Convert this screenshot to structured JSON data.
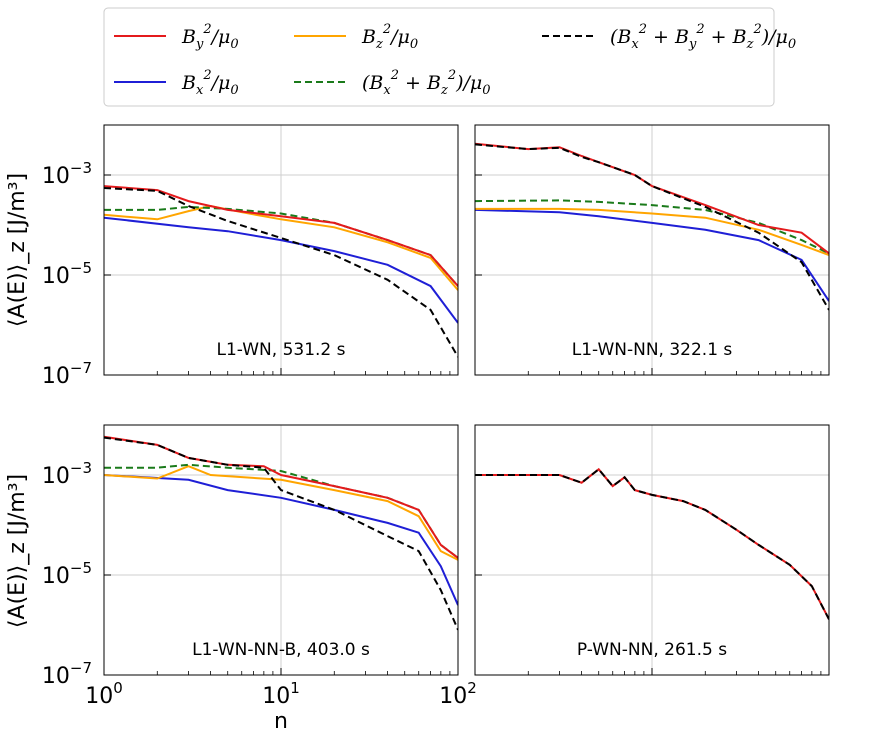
{
  "chart_data": {
    "type": "line",
    "xscale": "log",
    "yscale": "log",
    "xlabel": "n",
    "ylabel": "⟨A(E)⟩_z [J/m³]",
    "xlim": [
      1,
      100
    ],
    "ylim": [
      1e-07,
      0.01
    ],
    "x_ticks": [
      {
        "base": "10",
        "exp": "0"
      },
      {
        "base": "10",
        "exp": "1"
      },
      {
        "base": "10",
        "exp": "2"
      }
    ],
    "y_ticks": [
      {
        "base": "10",
        "exp": "−3",
        "value": 0.001
      },
      {
        "base": "10",
        "exp": "−5",
        "value": 1e-05
      },
      {
        "base": "10",
        "exp": "−7",
        "value": 1e-07
      }
    ],
    "legend": [
      {
        "key": "By",
        "label": "B_y²/μ₀",
        "color": "#e41a1c",
        "dash": "solid"
      },
      {
        "key": "Bx",
        "label": "B_x²/μ₀",
        "color": "#1f1fd6",
        "dash": "solid"
      },
      {
        "key": "Bz",
        "label": "B_z²/μ₀",
        "color": "#ffa500",
        "dash": "solid"
      },
      {
        "key": "Bxz",
        "label": "(B_x²+B_z²)/μ₀",
        "color": "#1a7a1a",
        "dash": "dashed"
      },
      {
        "key": "Btot",
        "label": "(B_x²+B_y²+B_z²)/μ₀",
        "color": "#000000",
        "dash": "dashed"
      }
    ],
    "panels": [
      {
        "label": "L1-WN, 531.2 s",
        "series": {
          "By": [
            [
              1,
              0.0006
            ],
            [
              2,
              0.0005
            ],
            [
              3,
              0.0003
            ],
            [
              5,
              0.0002
            ],
            [
              10,
              0.00015
            ],
            [
              20,
              0.00011
            ],
            [
              40,
              5e-05
            ],
            [
              70,
              2.5e-05
            ],
            [
              100,
              6e-06
            ]
          ],
          "Bx": [
            [
              1,
              0.00014
            ],
            [
              3,
              9e-05
            ],
            [
              5,
              7.5e-05
            ],
            [
              10,
              5e-05
            ],
            [
              20,
              3e-05
            ],
            [
              40,
              1.6e-05
            ],
            [
              70,
              6e-06
            ],
            [
              100,
              1.1e-06
            ]
          ],
          "Bz": [
            [
              1,
              0.00016
            ],
            [
              2,
              0.00013
            ],
            [
              3,
              0.00019
            ],
            [
              4,
              0.00024
            ],
            [
              6,
              0.00018
            ],
            [
              10,
              0.00013
            ],
            [
              20,
              9e-05
            ],
            [
              40,
              4.5e-05
            ],
            [
              70,
              2.2e-05
            ],
            [
              100,
              5e-06
            ]
          ],
          "Bxz": [
            [
              1,
              0.0002
            ],
            [
              2,
              0.0002
            ],
            [
              3,
              0.00023
            ],
            [
              5,
              0.00021
            ],
            [
              10,
              0.00017
            ],
            [
              20,
              0.00011
            ],
            [
              40,
              5e-05
            ],
            [
              70,
              2.5e-05
            ],
            [
              100,
              6e-06
            ]
          ],
          "Btot": [
            [
              1,
              0.00055
            ],
            [
              2,
              0.00048
            ],
            [
              3,
              0.00024
            ],
            [
              5,
              0.00012
            ],
            [
              10,
              5.5e-05
            ],
            [
              20,
              2.5e-05
            ],
            [
              40,
              8e-06
            ],
            [
              70,
              2e-06
            ],
            [
              100,
              2.3e-07
            ]
          ]
        }
      },
      {
        "label": "L1-WN-NN, 322.1 s",
        "series": {
          "By": [
            [
              1,
              0.0042
            ],
            [
              2,
              0.0033
            ],
            [
              3,
              0.0036
            ],
            [
              4,
              0.0024
            ],
            [
              5,
              0.0018
            ],
            [
              8,
              0.001
            ],
            [
              10,
              0.0006
            ],
            [
              20,
              0.00025
            ],
            [
              40,
              0.0001
            ],
            [
              70,
              7e-05
            ],
            [
              100,
              2.7e-05
            ]
          ],
          "Bx": [
            [
              1,
              0.0002
            ],
            [
              3,
              0.00018
            ],
            [
              5,
              0.00015
            ],
            [
              10,
              0.00011
            ],
            [
              20,
              8e-05
            ],
            [
              40,
              5e-05
            ],
            [
              70,
              2e-05
            ],
            [
              100,
              3e-06
            ]
          ],
          "Bz": [
            [
              1,
              0.00021
            ],
            [
              3,
              0.00021
            ],
            [
              5,
              0.0002
            ],
            [
              10,
              0.00017
            ],
            [
              20,
              0.00014
            ],
            [
              40,
              8e-05
            ],
            [
              70,
              4e-05
            ],
            [
              100,
              2.5e-05
            ]
          ],
          "Bxz": [
            [
              1,
              0.0003
            ],
            [
              3,
              0.00031
            ],
            [
              5,
              0.00029
            ],
            [
              10,
              0.00025
            ],
            [
              20,
              0.0002
            ],
            [
              40,
              0.00011
            ],
            [
              70,
              5e-05
            ],
            [
              100,
              2.7e-05
            ]
          ],
          "Btot": [
            [
              1,
              0.0041
            ],
            [
              2,
              0.0033
            ],
            [
              3,
              0.0035
            ],
            [
              4,
              0.0023
            ],
            [
              5,
              0.0018
            ],
            [
              8,
              0.001
            ],
            [
              10,
              0.0006
            ],
            [
              20,
              0.00023
            ],
            [
              40,
              7e-05
            ],
            [
              70,
              1.8e-05
            ],
            [
              100,
              2e-06
            ]
          ]
        }
      },
      {
        "label": "L1-WN-NN-B, 403.0 s",
        "series": {
          "By": [
            [
              1,
              0.0058
            ],
            [
              2,
              0.004
            ],
            [
              3,
              0.0022
            ],
            [
              5,
              0.0016
            ],
            [
              8,
              0.0015
            ],
            [
              10,
              0.001
            ],
            [
              20,
              0.0006
            ],
            [
              40,
              0.00035
            ],
            [
              60,
              0.0002
            ],
            [
              80,
              4e-05
            ],
            [
              100,
              2.2e-05
            ]
          ],
          "Bx": [
            [
              1,
              0.001
            ],
            [
              3,
              0.0008
            ],
            [
              5,
              0.0005
            ],
            [
              10,
              0.00035
            ],
            [
              20,
              0.0002
            ],
            [
              40,
              0.00011
            ],
            [
              60,
              7e-05
            ],
            [
              80,
              1.5e-05
            ],
            [
              100,
              2.5e-06
            ]
          ],
          "Bz": [
            [
              1,
              0.001
            ],
            [
              2,
              0.00085
            ],
            [
              3,
              0.0015
            ],
            [
              4,
              0.001
            ],
            [
              10,
              0.0008
            ],
            [
              20,
              0.0005
            ],
            [
              40,
              0.0003
            ],
            [
              60,
              0.00015
            ],
            [
              80,
              3e-05
            ],
            [
              100,
              2e-05
            ]
          ],
          "Bxz": [
            [
              1,
              0.0014
            ],
            [
              2,
              0.0014
            ],
            [
              3,
              0.0016
            ],
            [
              5,
              0.0014
            ],
            [
              10,
              0.0012
            ],
            [
              20,
              0.0006
            ],
            [
              40,
              0.00035
            ],
            [
              60,
              0.0002
            ],
            [
              80,
              4e-05
            ],
            [
              100,
              2.2e-05
            ]
          ],
          "Btot": [
            [
              1,
              0.0056
            ],
            [
              2,
              0.004
            ],
            [
              3,
              0.0022
            ],
            [
              5,
              0.0016
            ],
            [
              8,
              0.0014
            ],
            [
              10,
              0.0005
            ],
            [
              20,
              0.0002
            ],
            [
              40,
              6e-05
            ],
            [
              60,
              3e-05
            ],
            [
              80,
              5e-06
            ],
            [
              100,
              8e-07
            ]
          ]
        }
      },
      {
        "label": "P-WN-NN, 261.5 s",
        "series": {
          "By": [
            [
              1,
              0.001
            ],
            [
              3,
              0.001
            ],
            [
              4,
              0.0007
            ],
            [
              5,
              0.0013
            ],
            [
              6,
              0.0006
            ],
            [
              7,
              0.0009
            ],
            [
              8,
              0.0005
            ],
            [
              10,
              0.0004
            ],
            [
              15,
              0.0003
            ],
            [
              20,
              0.0002
            ],
            [
              30,
              8e-05
            ],
            [
              40,
              4e-05
            ],
            [
              60,
              1.6e-05
            ],
            [
              80,
              6e-06
            ],
            [
              100,
              1.3e-06
            ]
          ],
          "Btot": [
            [
              1,
              0.001
            ],
            [
              3,
              0.001
            ],
            [
              4,
              0.0007
            ],
            [
              5,
              0.0013
            ],
            [
              6,
              0.0006
            ],
            [
              7,
              0.0009
            ],
            [
              8,
              0.0005
            ],
            [
              10,
              0.0004
            ],
            [
              15,
              0.0003
            ],
            [
              20,
              0.0002
            ],
            [
              30,
              8e-05
            ],
            [
              40,
              4e-05
            ],
            [
              60,
              1.6e-05
            ],
            [
              80,
              6e-06
            ],
            [
              100,
              1.3e-06
            ]
          ]
        }
      }
    ]
  }
}
